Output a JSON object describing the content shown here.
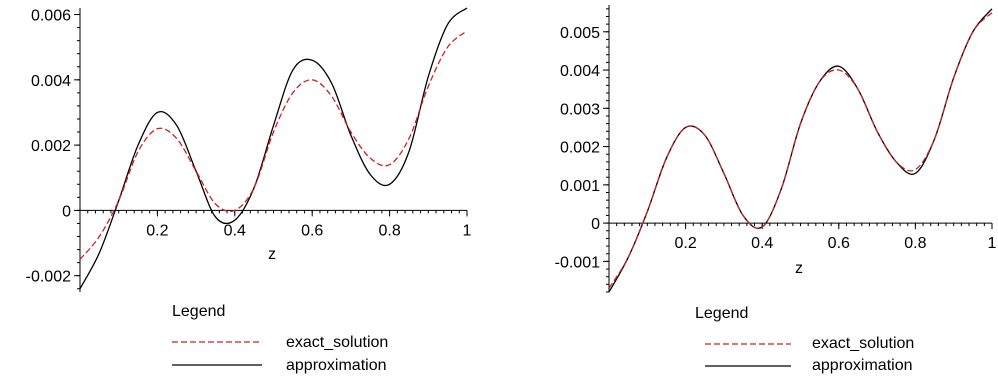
{
  "colors": {
    "exact_solution": "#cc2222",
    "approximation": "#000000",
    "axis": "#000000"
  },
  "chart_data": [
    {
      "type": "line",
      "xlabel": "z",
      "ylabel": "",
      "xlim": [
        0,
        1
      ],
      "ylim": [
        -0.0025,
        0.0062
      ],
      "x_ticks": [
        0.2,
        0.4,
        0.6,
        0.8,
        1
      ],
      "x_tick_labels": [
        "0.2",
        "0.4",
        "0.6",
        "0.8",
        "1"
      ],
      "y_ticks": [
        -0.002,
        0,
        0.002,
        0.004,
        0.006
      ],
      "y_tick_labels": [
        "-0.002",
        "0",
        "0.002",
        "0.004",
        "0.006"
      ],
      "legend": {
        "title": "Legend",
        "placement": "bottom"
      },
      "series": [
        {
          "name": "exact_solution",
          "style": "dashed",
          "x": [
            0,
            0.05,
            0.1,
            0.15,
            0.2,
            0.25,
            0.3,
            0.35,
            0.4,
            0.45,
            0.5,
            0.55,
            0.6,
            0.65,
            0.7,
            0.75,
            0.8,
            0.85,
            0.9,
            0.95,
            1
          ],
          "y": [
            -0.0015,
            -0.0008,
            0.0003,
            0.0018,
            0.0025,
            0.0022,
            0.0012,
            0.0002,
            0.0,
            0.0007,
            0.0024,
            0.0036,
            0.004,
            0.0035,
            0.0024,
            0.0016,
            0.0014,
            0.0022,
            0.0038,
            0.005,
            0.0055
          ]
        },
        {
          "name": "approximation",
          "style": "solid",
          "x": [
            0,
            0.05,
            0.1,
            0.15,
            0.2,
            0.25,
            0.3,
            0.35,
            0.4,
            0.45,
            0.5,
            0.55,
            0.6,
            0.65,
            0.7,
            0.75,
            0.8,
            0.85,
            0.9,
            0.95,
            1
          ],
          "y": [
            -0.0024,
            -0.0013,
            0.0003,
            0.002,
            0.003,
            0.0026,
            0.0012,
            -0.0002,
            -0.0003,
            0.0007,
            0.0026,
            0.0043,
            0.0046,
            0.0039,
            0.0023,
            0.0011,
            0.0008,
            0.0018,
            0.0041,
            0.0057,
            0.0062
          ]
        }
      ]
    },
    {
      "type": "line",
      "xlabel": "z",
      "ylabel": "",
      "xlim": [
        0,
        1
      ],
      "ylim": [
        -0.0018,
        0.0057
      ],
      "x_ticks": [
        0.2,
        0.4,
        0.6,
        0.8,
        1
      ],
      "x_tick_labels": [
        "0.2",
        "0.4",
        "0.6",
        "0.8",
        "1"
      ],
      "y_ticks": [
        -0.001,
        0,
        0.001,
        0.002,
        0.003,
        0.004,
        0.005
      ],
      "y_tick_labels": [
        "-0.001",
        "0",
        "0.001",
        "0.002",
        "0.003",
        "0.004",
        "0.005"
      ],
      "legend": {
        "title": "Legend",
        "placement": "bottom"
      },
      "series": [
        {
          "name": "exact_solution",
          "style": "dashed",
          "x": [
            0,
            0.05,
            0.1,
            0.15,
            0.2,
            0.25,
            0.3,
            0.35,
            0.4,
            0.45,
            0.5,
            0.55,
            0.6,
            0.65,
            0.7,
            0.75,
            0.8,
            0.85,
            0.9,
            0.95,
            1
          ],
          "y": [
            -0.0017,
            -0.0009,
            0.0003,
            0.0017,
            0.0025,
            0.0023,
            0.0013,
            0.0002,
            -0.0001,
            0.0009,
            0.0026,
            0.0037,
            0.004,
            0.0035,
            0.0024,
            0.0016,
            0.0014,
            0.0022,
            0.0038,
            0.005,
            0.0055
          ]
        },
        {
          "name": "approximation",
          "style": "solid",
          "x": [
            0,
            0.05,
            0.1,
            0.15,
            0.2,
            0.25,
            0.3,
            0.35,
            0.4,
            0.45,
            0.5,
            0.55,
            0.6,
            0.65,
            0.7,
            0.75,
            0.8,
            0.85,
            0.9,
            0.95,
            1
          ],
          "y": [
            -0.0018,
            -0.0009,
            0.0003,
            0.0017,
            0.0025,
            0.0023,
            0.0013,
            0.0002,
            -0.0001,
            0.0009,
            0.0026,
            0.0037,
            0.0041,
            0.0035,
            0.0024,
            0.0016,
            0.0013,
            0.0022,
            0.0038,
            0.005,
            0.0056
          ]
        }
      ]
    }
  ]
}
